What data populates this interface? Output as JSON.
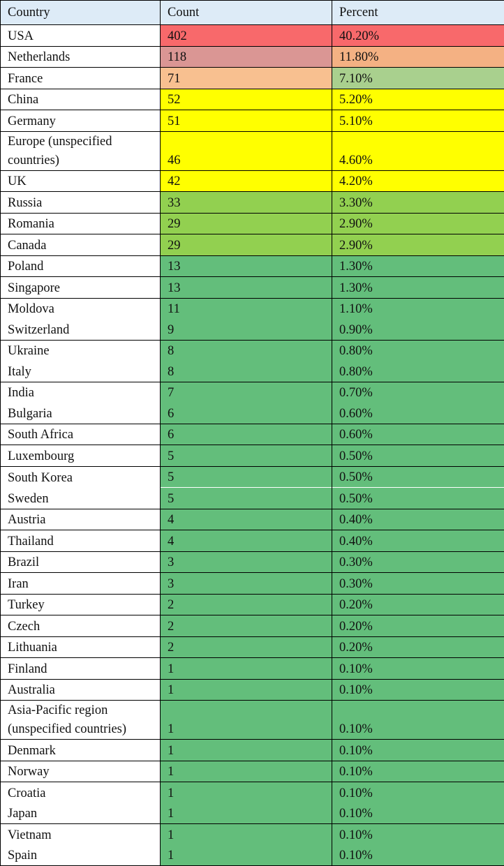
{
  "table": {
    "header": {
      "country": "Country",
      "count": "Count",
      "percent": "Percent",
      "background": "#DDEBF7"
    },
    "groups": [
      [
        {
          "country": "USA",
          "count": "402",
          "percent": "40.20%",
          "count_color": "#F8696B",
          "percent_color": "#F8696B"
        }
      ],
      [
        {
          "country": "Netherlands",
          "count": "118",
          "percent": "11.80%",
          "count_color": "#DA9694",
          "percent_color": "#F4B183"
        }
      ],
      [
        {
          "country": "France",
          "count": "71",
          "percent": "7.10%",
          "count_color": "#F8C090",
          "percent_color": "#A9D08E"
        }
      ],
      [
        {
          "country": "China",
          "count": "52",
          "percent": "5.20%",
          "count_color": "#FFFF00",
          "percent_color": "#FFFF00"
        }
      ],
      [
        {
          "country": "Germany",
          "count": "51",
          "percent": "5.10%",
          "count_color": "#FFFF00",
          "percent_color": "#FFFF00"
        }
      ],
      [
        {
          "country": "Europe (unspecified countries)",
          "count": "46",
          "percent": "4.60%",
          "count_color": "#FFFF00",
          "percent_color": "#FFFF00"
        }
      ],
      [
        {
          "country": "UK",
          "count": "42",
          "percent": "4.20%",
          "count_color": "#FFFF00",
          "percent_color": "#FFFF00"
        }
      ],
      [
        {
          "country": "Russia",
          "count": "33",
          "percent": "3.30%",
          "count_color": "#92D050",
          "percent_color": "#92D050"
        }
      ],
      [
        {
          "country": "Romania",
          "count": "29",
          "percent": "2.90%",
          "count_color": "#92D050",
          "percent_color": "#92D050"
        }
      ],
      [
        {
          "country": "Canada",
          "count": "29",
          "percent": "2.90%",
          "count_color": "#92D050",
          "percent_color": "#92D050"
        }
      ],
      [
        {
          "country": "Poland",
          "count": "13",
          "percent": "1.30%",
          "count_color": "#63BE7B",
          "percent_color": "#63BE7B"
        }
      ],
      [
        {
          "country": "Singapore",
          "count": "13",
          "percent": "1.30%",
          "count_color": "#63BE7B",
          "percent_color": "#63BE7B"
        }
      ],
      [
        {
          "country": "Moldova",
          "count": "11",
          "percent": "1.10%",
          "count_color": "#63BE7B",
          "percent_color": "#63BE7B"
        },
        {
          "country": "Switzerland",
          "count": "9",
          "percent": "0.90%",
          "count_color": "#63BE7B",
          "percent_color": "#63BE7B"
        }
      ],
      [
        {
          "country": "Ukraine",
          "count": "8",
          "percent": "0.80%",
          "count_color": "#63BE7B",
          "percent_color": "#63BE7B"
        },
        {
          "country": "Italy",
          "count": "8",
          "percent": "0.80%",
          "count_color": "#63BE7B",
          "percent_color": "#63BE7B"
        }
      ],
      [
        {
          "country": "India",
          "count": "7",
          "percent": "0.70%",
          "count_color": "#63BE7B",
          "percent_color": "#63BE7B"
        },
        {
          "country": "Bulgaria",
          "count": "6",
          "percent": "0.60%",
          "count_color": "#63BE7B",
          "percent_color": "#63BE7B"
        }
      ],
      [
        {
          "country": "South Africa",
          "count": "6",
          "percent": "0.60%",
          "count_color": "#63BE7B",
          "percent_color": "#63BE7B"
        }
      ],
      [
        {
          "country": "Luxembourg",
          "count": "5",
          "percent": "0.50%",
          "count_color": "#63BE7B",
          "percent_color": "#63BE7B"
        }
      ],
      [
        {
          "country": "South Korea",
          "count": "5",
          "percent": "0.50%",
          "count_color": "#63BE7B",
          "percent_color": "#63BE7B"
        },
        {
          "country": "Sweden",
          "count": "5",
          "percent": "0.50%",
          "count_color": "#63BE7B",
          "percent_color": "#63BE7B"
        }
      ],
      [
        {
          "country": "Austria",
          "count": "4",
          "percent": "0.40%",
          "count_color": "#63BE7B",
          "percent_color": "#63BE7B"
        }
      ],
      [
        {
          "country": "Thailand",
          "count": "4",
          "percent": "0.40%",
          "count_color": "#63BE7B",
          "percent_color": "#63BE7B"
        }
      ],
      [
        {
          "country": "Brazil",
          "count": "3",
          "percent": "0.30%",
          "count_color": "#63BE7B",
          "percent_color": "#63BE7B"
        }
      ],
      [
        {
          "country": "Iran",
          "count": "3",
          "percent": "0.30%",
          "count_color": "#63BE7B",
          "percent_color": "#63BE7B"
        }
      ],
      [
        {
          "country": "Turkey",
          "count": "2",
          "percent": "0.20%",
          "count_color": "#63BE7B",
          "percent_color": "#63BE7B"
        }
      ],
      [
        {
          "country": "Czech",
          "count": "2",
          "percent": "0.20%",
          "count_color": "#63BE7B",
          "percent_color": "#63BE7B"
        }
      ],
      [
        {
          "country": "Lithuania",
          "count": "2",
          "percent": "0.20%",
          "count_color": "#63BE7B",
          "percent_color": "#63BE7B"
        }
      ],
      [
        {
          "country": "Finland",
          "count": "1",
          "percent": "0.10%",
          "count_color": "#63BE7B",
          "percent_color": "#63BE7B"
        }
      ],
      [
        {
          "country": "Australia",
          "count": "1",
          "percent": "0.10%",
          "count_color": "#63BE7B",
          "percent_color": "#63BE7B"
        }
      ],
      [
        {
          "country": "Asia-Pacific region (unspecified countries)",
          "count": "1",
          "percent": "0.10%",
          "count_color": "#63BE7B",
          "percent_color": "#63BE7B"
        }
      ],
      [
        {
          "country": "Denmark",
          "count": "1",
          "percent": "0.10%",
          "count_color": "#63BE7B",
          "percent_color": "#63BE7B"
        }
      ],
      [
        {
          "country": "Norway",
          "count": "1",
          "percent": "0.10%",
          "count_color": "#63BE7B",
          "percent_color": "#63BE7B"
        }
      ],
      [
        {
          "country": "Croatia",
          "count": "1",
          "percent": "0.10%",
          "count_color": "#63BE7B",
          "percent_color": "#63BE7B"
        },
        {
          "country": "Japan",
          "count": "1",
          "percent": "0.10%",
          "count_color": "#63BE7B",
          "percent_color": "#63BE7B"
        }
      ],
      [
        {
          "country": "Vietnam",
          "count": "1",
          "percent": "0.10%",
          "count_color": "#63BE7B",
          "percent_color": "#63BE7B"
        },
        {
          "country": "Spain",
          "count": "1",
          "percent": "0.10%",
          "count_color": "#63BE7B",
          "percent_color": "#63BE7B"
        }
      ]
    ]
  }
}
